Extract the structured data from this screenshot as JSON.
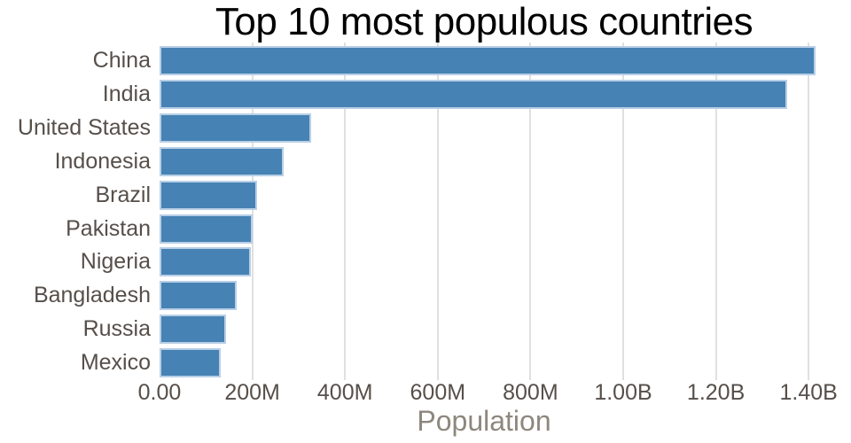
{
  "title": "Top 10 most populous countries",
  "xlabel": "Population",
  "colors": {
    "background": "#ffffff",
    "bar_fill": "#4682b4",
    "bar_edge": "#b8cfe6",
    "gridline": "#e0e0e0",
    "title_text": "#000000",
    "tick_label_text": "#564f4a",
    "axis_title_text": "#8e877d"
  },
  "chart_data": {
    "type": "bar",
    "orientation": "horizontal",
    "title": "Top 10 most populous countries",
    "xlabel": "Population",
    "ylabel": "",
    "categories": [
      "China",
      "India",
      "United States",
      "Indonesia",
      "Brazil",
      "Pakistan",
      "Nigeria",
      "Bangladesh",
      "Russia",
      "Mexico"
    ],
    "values": [
      1415000000,
      1354000000,
      327000000,
      267000000,
      211000000,
      201000000,
      196000000,
      166000000,
      144000000,
      131000000
    ],
    "values_unit": "people",
    "xlim": [
      0,
      1466000000
    ],
    "x_ticks": [
      {
        "value": 0,
        "label": "0.00"
      },
      {
        "value": 200000000,
        "label": "200M"
      },
      {
        "value": 400000000,
        "label": "400M"
      },
      {
        "value": 600000000,
        "label": "600M"
      },
      {
        "value": 800000000,
        "label": "800M"
      },
      {
        "value": 1000000000,
        "label": "1.00B"
      },
      {
        "value": 1200000000,
        "label": "1.20B"
      },
      {
        "value": 1400000000,
        "label": "1.40B"
      }
    ],
    "grid": "vertical-only",
    "legend": "none",
    "sorted": "descending"
  }
}
